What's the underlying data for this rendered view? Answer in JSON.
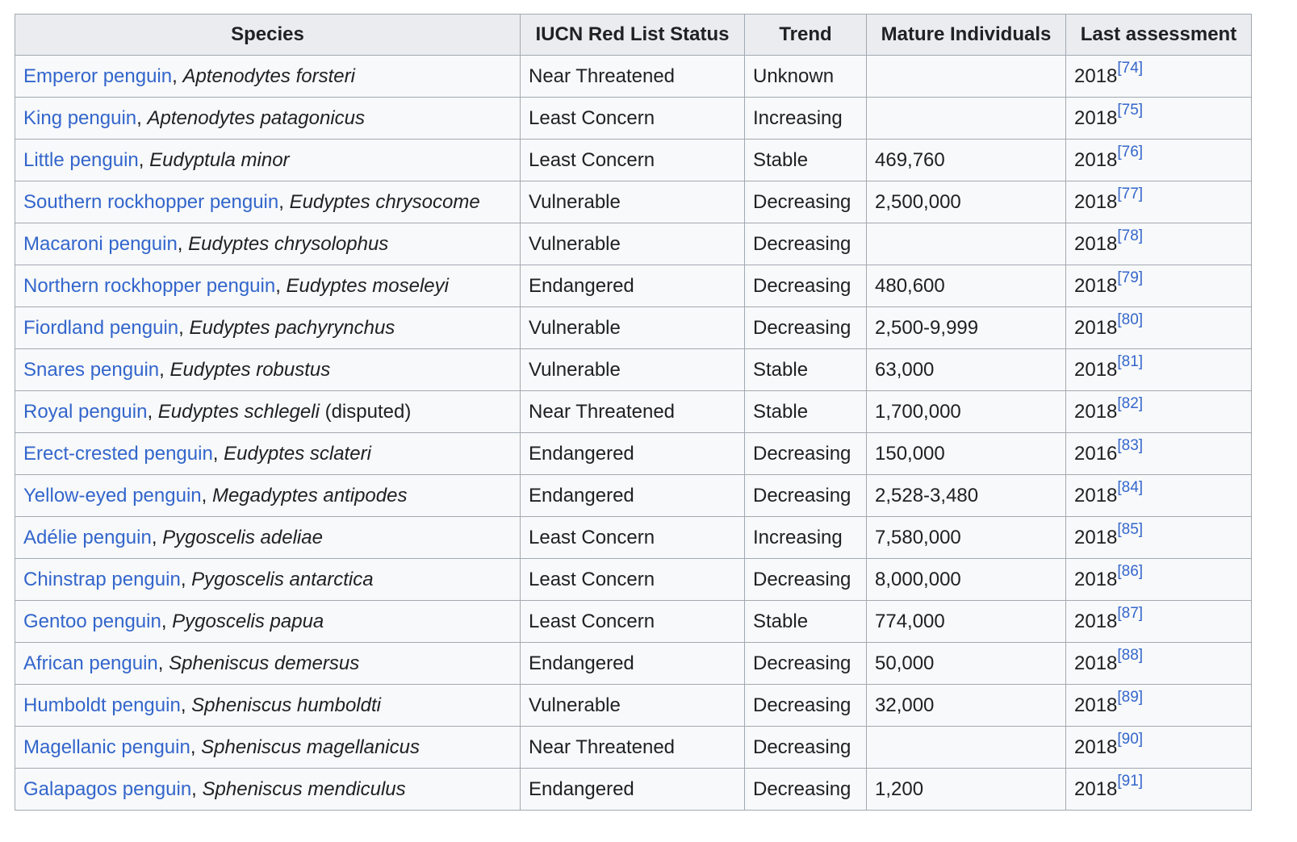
{
  "headers": {
    "species": "Species",
    "status": "IUCN Red List Status",
    "trend": "Trend",
    "mature": "Mature Individuals",
    "assessment": "Last assessment"
  },
  "rows": [
    {
      "common": "Emperor penguin",
      "sep": ", ",
      "binomial": "Aptenodytes forsteri",
      "note": "",
      "status": "Near Threatened",
      "trend": "Unknown",
      "mature": "",
      "year": "2018",
      "ref": "[74]"
    },
    {
      "common": "King penguin",
      "sep": ", ",
      "binomial": "Aptenodytes patagonicus",
      "note": "",
      "status": "Least Concern",
      "trend": "Increasing",
      "mature": "",
      "year": "2018",
      "ref": "[75]"
    },
    {
      "common": "Little penguin",
      "sep": ", ",
      "binomial": "Eudyptula minor",
      "note": "",
      "status": "Least Concern",
      "trend": "Stable",
      "mature": "469,760",
      "year": "2018",
      "ref": "[76]"
    },
    {
      "common": "Southern rockhopper penguin",
      "sep": ", ",
      "binomial": "Eudyptes chrysocome",
      "note": "",
      "status": "Vulnerable",
      "trend": "Decreasing",
      "mature": "2,500,000",
      "year": "2018",
      "ref": "[77]"
    },
    {
      "common": "Macaroni penguin",
      "sep": ", ",
      "binomial": "Eudyptes chrysolophus",
      "note": "",
      "status": "Vulnerable",
      "trend": "Decreasing",
      "mature": "",
      "year": "2018",
      "ref": "[78]"
    },
    {
      "common": "Northern rockhopper penguin",
      "sep": ", ",
      "binomial": "Eudyptes moseleyi",
      "note": "",
      "status": "Endangered",
      "trend": "Decreasing",
      "mature": "480,600",
      "year": "2018",
      "ref": "[79]"
    },
    {
      "common": "Fiordland penguin",
      "sep": ", ",
      "binomial": "Eudyptes pachyrynchus",
      "note": "",
      "status": "Vulnerable",
      "trend": "Decreasing",
      "mature": "2,500-9,999",
      "year": "2018",
      "ref": "[80]"
    },
    {
      "common": "Snares penguin",
      "sep": ", ",
      "binomial": "Eudyptes robustus",
      "note": "",
      "status": "Vulnerable",
      "trend": "Stable",
      "mature": "63,000",
      "year": "2018",
      "ref": "[81]"
    },
    {
      "common": "Royal penguin",
      "sep": ", ",
      "binomial": "Eudyptes schlegeli",
      "note": " (disputed)",
      "status": "Near Threatened",
      "trend": "Stable",
      "mature": "1,700,000",
      "year": "2018",
      "ref": "[82]"
    },
    {
      "common": "Erect-crested penguin",
      "sep": ", ",
      "binomial": "Eudyptes sclateri",
      "note": "",
      "status": "Endangered",
      "trend": "Decreasing",
      "mature": "150,000",
      "year": "2016",
      "ref": "[83]"
    },
    {
      "common": "Yellow-eyed penguin",
      "sep": ", ",
      "binomial": "Megadyptes antipodes",
      "note": "",
      "status": "Endangered",
      "trend": "Decreasing",
      "mature": "2,528-3,480",
      "year": "2018",
      "ref": "[84]"
    },
    {
      "common": "Adélie penguin",
      "sep": ", ",
      "binomial": "Pygoscelis adeliae",
      "note": "",
      "status": "Least Concern",
      "trend": "Increasing",
      "mature": "7,580,000",
      "year": "2018",
      "ref": "[85]"
    },
    {
      "common": "Chinstrap penguin",
      "sep": ", ",
      "binomial": "Pygoscelis antarctica",
      "note": "",
      "status": "Least Concern",
      "trend": "Decreasing",
      "mature": "8,000,000",
      "year": "2018",
      "ref": "[86]"
    },
    {
      "common": "Gentoo penguin",
      "sep": ", ",
      "binomial": "Pygoscelis papua",
      "note": "",
      "status": "Least Concern",
      "trend": "Stable",
      "mature": "774,000",
      "year": "2018",
      "ref": "[87]"
    },
    {
      "common": "African penguin",
      "sep": ", ",
      "binomial": "Spheniscus demersus",
      "note": "",
      "status": "Endangered",
      "trend": "Decreasing",
      "mature": "50,000",
      "year": "2018",
      "ref": "[88]"
    },
    {
      "common": "Humboldt penguin",
      "sep": ", ",
      "binomial": "Spheniscus humboldti",
      "note": "",
      "status": "Vulnerable",
      "trend": "Decreasing",
      "mature": "32,000",
      "year": "2018",
      "ref": "[89]"
    },
    {
      "common": "Magellanic penguin",
      "sep": ", ",
      "binomial": "Spheniscus magellanicus",
      "note": "",
      "status": "Near Threatened",
      "trend": "Decreasing",
      "mature": "",
      "year": "2018",
      "ref": "[90]"
    },
    {
      "common": "Galapagos penguin",
      "sep": ", ",
      "binomial": "Spheniscus mendiculus",
      "note": "",
      "status": "Endangered",
      "trend": "Decreasing",
      "mature": "1,200",
      "year": "2018",
      "ref": "[91]"
    }
  ]
}
